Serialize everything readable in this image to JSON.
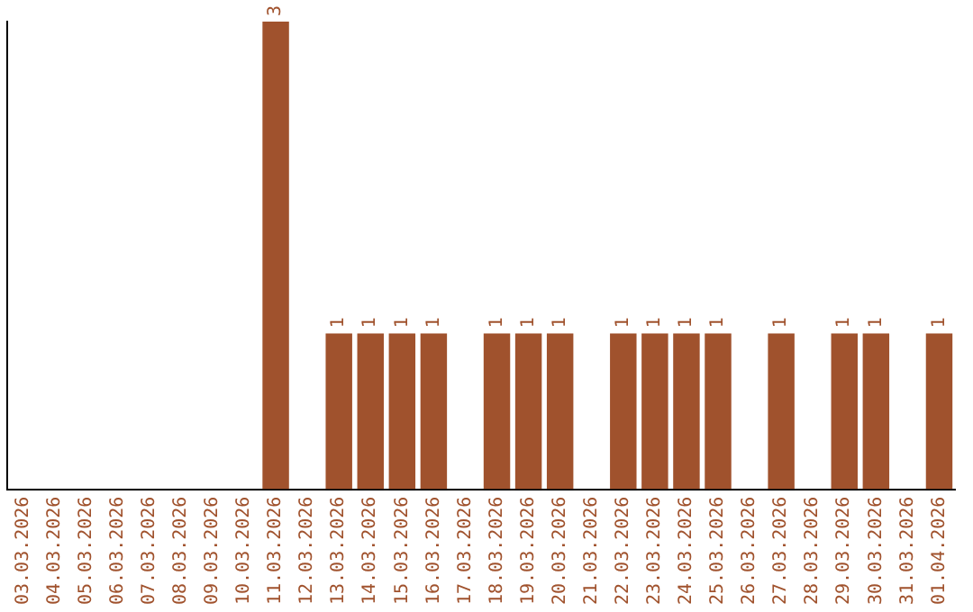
{
  "chart_data": {
    "type": "bar",
    "tick_labels": "x",
    "grid": false,
    "legend": false,
    "color": "#a0522d",
    "categories": [
      "03.03.2026",
      "04.03.2026",
      "05.03.2026",
      "06.03.2026",
      "07.03.2026",
      "08.03.2026",
      "09.03.2026",
      "10.03.2026",
      "11.03.2026",
      "12.03.2026",
      "13.03.2026",
      "14.03.2026",
      "15.03.2026",
      "16.03.2026",
      "17.03.2026",
      "18.03.2026",
      "19.03.2026",
      "20.03.2026",
      "21.03.2026",
      "22.03.2026",
      "23.03.2026",
      "24.03.2026",
      "25.03.2026",
      "26.03.2026",
      "27.03.2026",
      "28.03.2026",
      "29.03.2026",
      "30.03.2026",
      "31.03.2026",
      "01.04.2026"
    ],
    "values": [
      0,
      0,
      0,
      0,
      0,
      0,
      0,
      0,
      3,
      0,
      1,
      1,
      1,
      1,
      0,
      1,
      1,
      1,
      0,
      1,
      1,
      1,
      1,
      0,
      1,
      0,
      1,
      1,
      0,
      1
    ],
    "value_labels": [
      null,
      null,
      null,
      null,
      null,
      null,
      null,
      null,
      "3",
      null,
      "1",
      "1",
      "1",
      "1",
      null,
      "1",
      "1",
      "1",
      null,
      "1",
      "1",
      "1",
      "1",
      null,
      "1",
      null,
      "1",
      "1",
      null,
      "1"
    ]
  }
}
